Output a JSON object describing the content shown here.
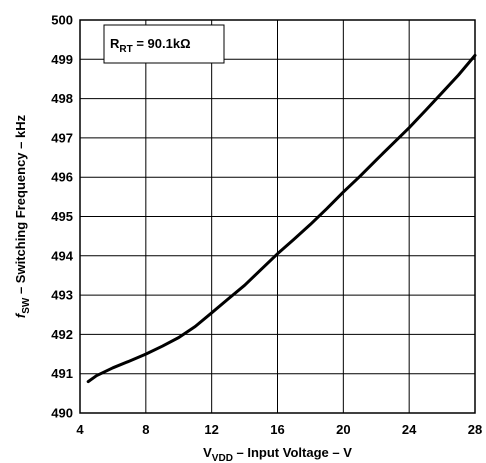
{
  "chart_data": {
    "type": "line",
    "title": "",
    "xlabel": {
      "prefix": "V",
      "sub": "VDD",
      "rest": " – Input Voltage – V"
    },
    "ylabel": {
      "prefix": "f",
      "sub": "SW",
      "rest": " – Switching Frequency – kHz"
    },
    "annotation": {
      "prefix": "R",
      "sub": "RT",
      "rest": " = 90.1kΩ"
    },
    "xlim": [
      4,
      28
    ],
    "ylim": [
      490,
      500
    ],
    "x_ticks": [
      4,
      8,
      12,
      16,
      20,
      24,
      28
    ],
    "y_ticks": [
      490,
      491,
      492,
      493,
      494,
      495,
      496,
      497,
      498,
      499,
      500
    ],
    "grid": true,
    "legend": "none",
    "series": [
      {
        "color": "#000000",
        "x": [
          4.5,
          5,
          6,
          7,
          8,
          9,
          10,
          11,
          12,
          13,
          14,
          15,
          16,
          17,
          18,
          19,
          20,
          21,
          22,
          23,
          24,
          25,
          26,
          27,
          28
        ],
        "y": [
          490.8,
          490.95,
          491.15,
          491.32,
          491.5,
          491.7,
          491.92,
          492.2,
          492.55,
          492.9,
          493.25,
          493.65,
          494.05,
          494.42,
          494.8,
          495.2,
          495.62,
          496.02,
          496.44,
          496.85,
          497.26,
          497.7,
          498.15,
          498.6,
          499.1
        ]
      }
    ]
  }
}
